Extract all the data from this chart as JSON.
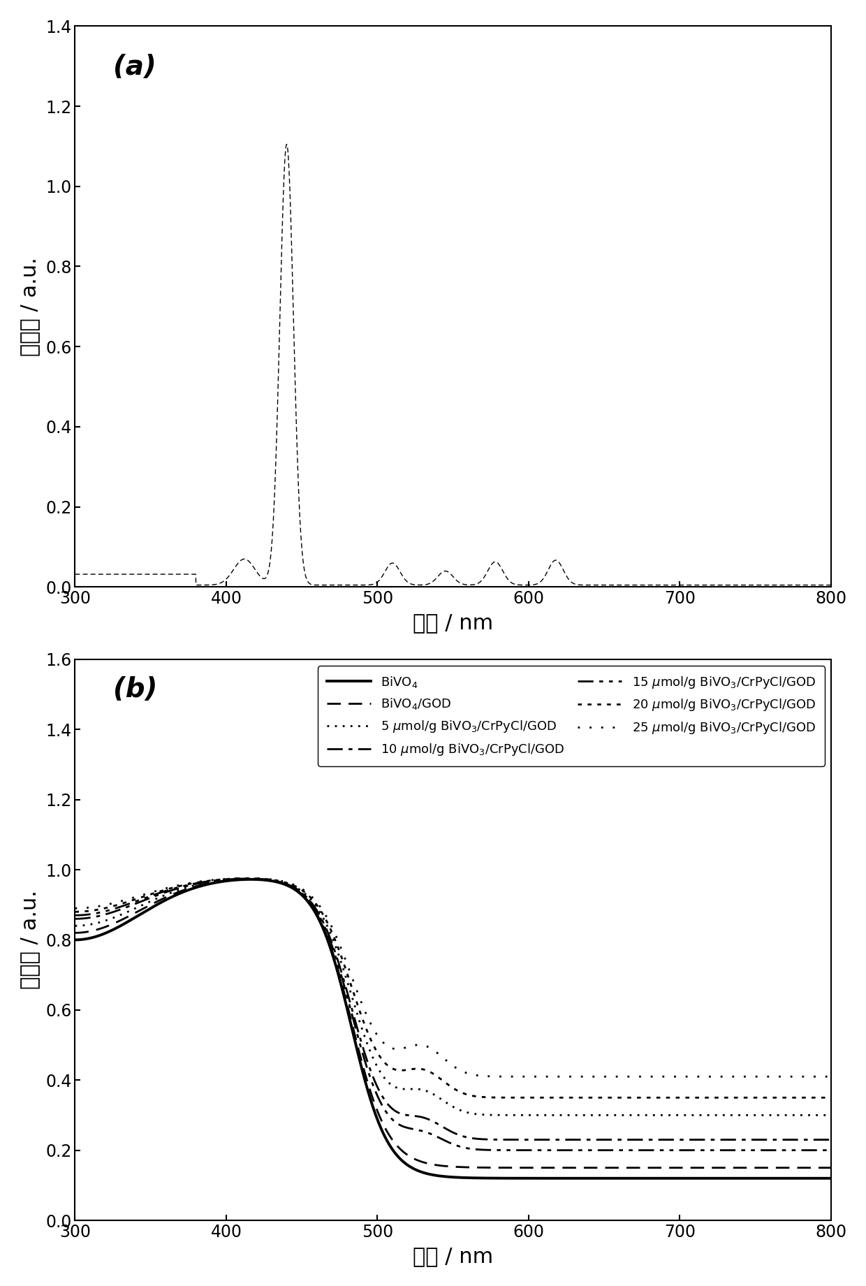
{
  "panel_a": {
    "label": "(a)",
    "ylabel": "吸光度 / a.u.",
    "xlabel": "波长 / nm",
    "xlim": [
      300,
      800
    ],
    "ylim": [
      0,
      1.4
    ],
    "yticks": [
      0.0,
      0.2,
      0.4,
      0.6,
      0.8,
      1.0,
      1.2,
      1.4
    ],
    "xticks": [
      300,
      400,
      500,
      600,
      700,
      800
    ]
  },
  "panel_b": {
    "label": "(b)",
    "ylabel": "吸光度 / a.u.",
    "xlabel": "波长 / nm",
    "xlim": [
      300,
      800
    ],
    "ylim": [
      0.0,
      1.6
    ],
    "yticks": [
      0.0,
      0.2,
      0.4,
      0.6,
      0.8,
      1.0,
      1.2,
      1.4,
      1.6
    ],
    "xticks": [
      300,
      400,
      500,
      600,
      700,
      800
    ]
  }
}
